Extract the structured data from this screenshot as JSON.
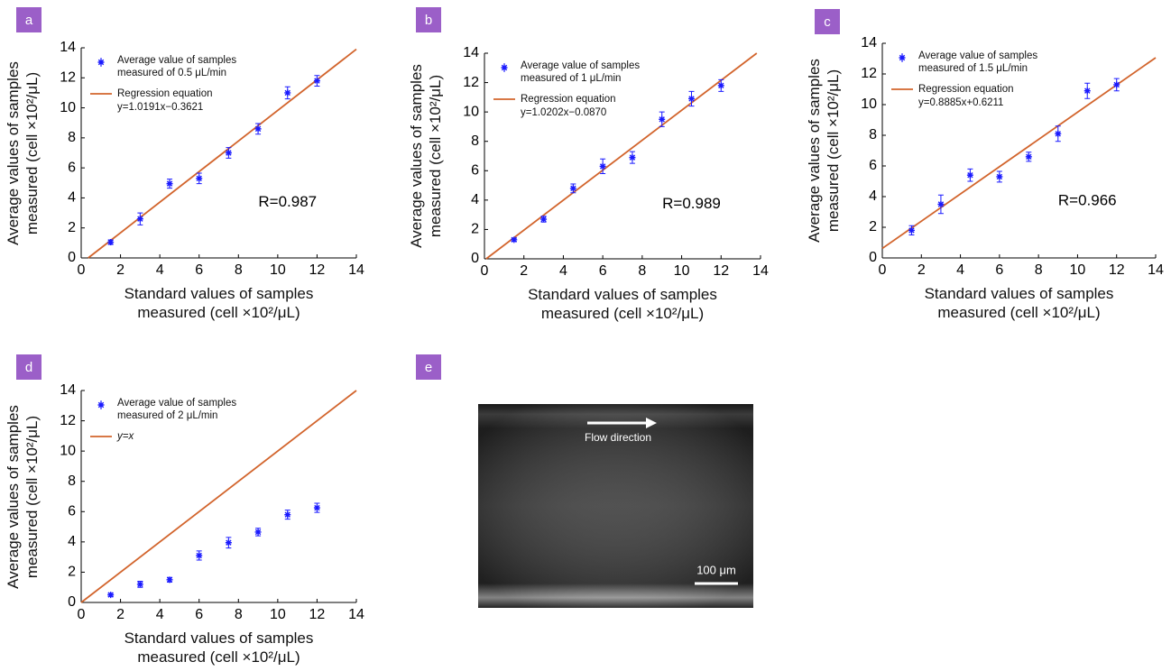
{
  "chart_data": [
    {
      "type": "scatter",
      "panel": "a",
      "x": [
        1.5,
        3,
        4.5,
        6,
        7.5,
        9,
        10.5,
        12
      ],
      "series": [
        {
          "name": "Average value of samples measured of 0.5 μL/min",
          "color": "#1a1aff",
          "values": [
            1.05,
            2.6,
            4.95,
            5.3,
            7.0,
            8.6,
            11.0,
            11.8
          ],
          "errors": [
            0.15,
            0.4,
            0.3,
            0.35,
            0.35,
            0.35,
            0.4,
            0.35
          ]
        }
      ],
      "fit": {
        "name": "Regression equation",
        "equation": "y=1.0191x−0.3621",
        "slope": 1.0191,
        "intercept": -0.3621,
        "color": "#d2642c"
      },
      "annotation": "R=0.987",
      "xlabel": "Standard values of samples measured (cell ×10²/μL)",
      "ylabel": "Average values of samples measured (cell ×10²/μL)",
      "xlim": [
        0,
        14
      ],
      "ylim": [
        0,
        14
      ],
      "xticks": [
        0,
        2,
        4,
        6,
        8,
        10,
        12,
        14
      ],
      "yticks": [
        0,
        2,
        4,
        6,
        8,
        10,
        12,
        14
      ]
    },
    {
      "type": "scatter",
      "panel": "b",
      "x": [
        1.5,
        3,
        4.5,
        6,
        7.5,
        9,
        10.5,
        12
      ],
      "series": [
        {
          "name": "Average value of samples measured of 1 μL/min",
          "color": "#1a1aff",
          "values": [
            1.3,
            2.7,
            4.8,
            6.3,
            6.9,
            9.5,
            10.9,
            11.8
          ],
          "errors": [
            0.1,
            0.2,
            0.3,
            0.5,
            0.4,
            0.5,
            0.5,
            0.4
          ]
        }
      ],
      "fit": {
        "name": "Regression equation",
        "equation": "y=1.0202x−0.0870",
        "slope": 1.0202,
        "intercept": -0.087,
        "color": "#d2642c"
      },
      "annotation": "R=0.989",
      "xlabel": "Standard values of samples measured (cell ×10²/μL)",
      "ylabel": "Average values of samples measured (cell ×10²/μL)",
      "xlim": [
        0,
        14
      ],
      "ylim": [
        0,
        14
      ],
      "xticks": [
        0,
        2,
        4,
        6,
        8,
        10,
        12,
        14
      ],
      "yticks": [
        0,
        2,
        4,
        6,
        8,
        10,
        12,
        14
      ]
    },
    {
      "type": "scatter",
      "panel": "c",
      "x": [
        1.5,
        3,
        4.5,
        6,
        7.5,
        9,
        10.5,
        12
      ],
      "series": [
        {
          "name": "Average value of samples measured of 1.5 μL/min",
          "color": "#1a1aff",
          "values": [
            1.8,
            3.5,
            5.4,
            5.3,
            6.6,
            8.1,
            10.9,
            11.3
          ],
          "errors": [
            0.3,
            0.6,
            0.4,
            0.35,
            0.3,
            0.5,
            0.5,
            0.4
          ]
        }
      ],
      "fit": {
        "name": "Regression equation",
        "equation": "y=0.8885x+0.6211",
        "slope": 0.8885,
        "intercept": 0.6211,
        "color": "#d2642c"
      },
      "annotation": "R=0.966",
      "xlabel": "Standard values of samples measured (cell ×10²/μL)",
      "ylabel": "Average values of samples measured (cell ×10²/μL)",
      "xlim": [
        0,
        14
      ],
      "ylim": [
        0,
        14
      ],
      "xticks": [
        0,
        2,
        4,
        6,
        8,
        10,
        12,
        14
      ],
      "yticks": [
        0,
        2,
        4,
        6,
        8,
        10,
        12,
        14
      ]
    },
    {
      "type": "scatter",
      "panel": "d",
      "x": [
        1.5,
        3,
        4.5,
        6,
        7.5,
        9,
        10.5,
        12
      ],
      "series": [
        {
          "name": "Average value of samples measured of 2 μL/min",
          "color": "#1a1aff",
          "values": [
            0.5,
            1.2,
            1.5,
            3.1,
            3.95,
            4.65,
            5.8,
            6.25
          ],
          "errors": [
            0.1,
            0.2,
            0.15,
            0.3,
            0.35,
            0.25,
            0.3,
            0.3
          ]
        }
      ],
      "fit": {
        "name": "y=x",
        "slope": 1,
        "intercept": 0,
        "color": "#d2642c"
      },
      "xlabel": "Standard values of samples measured (cell ×10²/μL)",
      "ylabel": "Average values of samples measured (cell ×10²/μL)",
      "xlim": [
        0,
        14
      ],
      "ylim": [
        0,
        14
      ],
      "xticks": [
        0,
        2,
        4,
        6,
        8,
        10,
        12,
        14
      ],
      "yticks": [
        0,
        2,
        4,
        6,
        8,
        10,
        12,
        14
      ]
    }
  ],
  "panel_e": {
    "label": "e",
    "arrow_text": "Flow direction",
    "scale_bar": "100 μm"
  }
}
